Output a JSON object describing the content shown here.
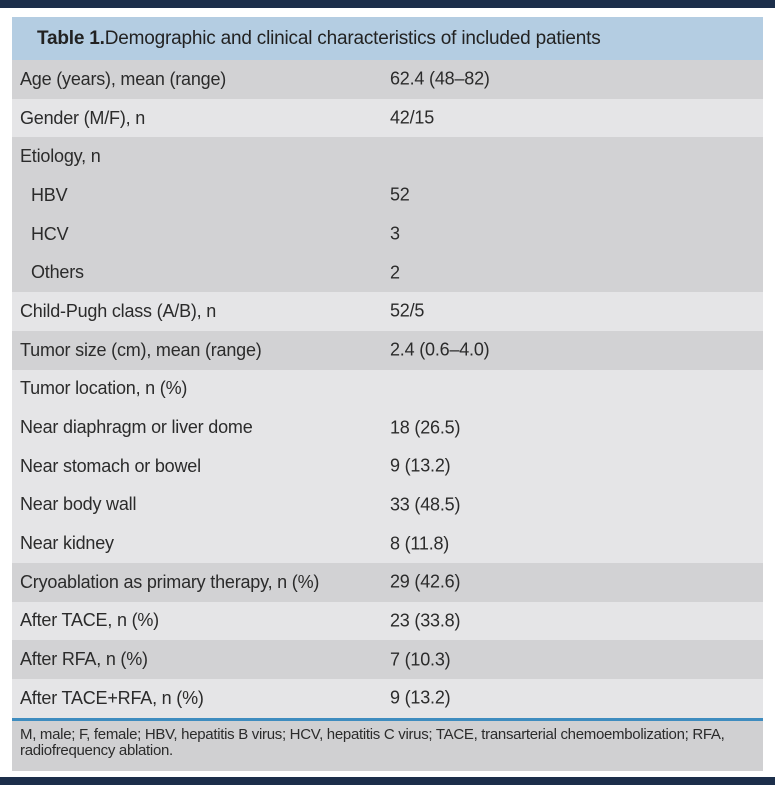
{
  "table": {
    "title_prefix": "Table 1.",
    "title_rest": " Demographic and clinical characteristics of included patients",
    "groups": [
      {
        "shade": "dark",
        "rows": [
          {
            "label": "Age (years), mean (range)",
            "value": "62.4 (48–82)",
            "indent": false
          }
        ]
      },
      {
        "shade": "light",
        "rows": [
          {
            "label": "Gender (M/F), n",
            "value": "42/15",
            "indent": false
          }
        ]
      },
      {
        "shade": "dark",
        "rows": [
          {
            "label": "Etiology, n",
            "value": "",
            "indent": false
          },
          {
            "label": "HBV",
            "value": "52",
            "indent": true
          },
          {
            "label": "HCV",
            "value": "3",
            "indent": true
          },
          {
            "label": "Others",
            "value": "2",
            "indent": true
          }
        ]
      },
      {
        "shade": "light",
        "rows": [
          {
            "label": "Child-Pugh class (A/B), n",
            "value": "52/5",
            "indent": false
          }
        ]
      },
      {
        "shade": "dark",
        "rows": [
          {
            "label": "Tumor size (cm), mean (range)",
            "value": "2.4 (0.6–4.0)",
            "indent": false
          }
        ]
      },
      {
        "shade": "light",
        "rows": [
          {
            "label": "Tumor location, n (%)",
            "value": "",
            "indent": false
          },
          {
            "label": "Near diaphragm or liver dome",
            "value": "18 (26.5)",
            "indent": false
          },
          {
            "label": "Near stomach or bowel",
            "value": "9 (13.2)",
            "indent": false
          },
          {
            "label": "Near body wall",
            "value": "33 (48.5)",
            "indent": false
          },
          {
            "label": "Near kidney",
            "value": "8 (11.8)",
            "indent": false
          }
        ]
      },
      {
        "shade": "dark",
        "rows": [
          {
            "label": "Cryoablation as primary therapy, n (%)",
            "value": "29 (42.6)",
            "indent": false
          }
        ]
      },
      {
        "shade": "light",
        "rows": [
          {
            "label": "After TACE, n (%)",
            "value": "23 (33.8)",
            "indent": false
          }
        ]
      },
      {
        "shade": "dark",
        "rows": [
          {
            "label": "After RFA, n (%)",
            "value": "7 (10.3)",
            "indent": false
          }
        ]
      },
      {
        "shade": "light",
        "rows": [
          {
            "label": "After TACE+RFA, n (%)",
            "value": "9 (13.2)",
            "indent": false
          }
        ]
      }
    ],
    "footnote_line1": "M, male; F, female; HBV, hepatitis B virus; HCV, hepatitis C virus; TACE, transarterial chemoembolization; RFA,",
    "footnote_line2": "radiofrequency ablation."
  },
  "colors": {
    "bar-navy": "#1c2e4a",
    "header-bg": "#b4cde2",
    "row-dark": "#d2d2d4",
    "row-light": "#e5e5e7",
    "rule-blue": "#3e8cbf",
    "footer-bg": "#d0d0d2"
  }
}
